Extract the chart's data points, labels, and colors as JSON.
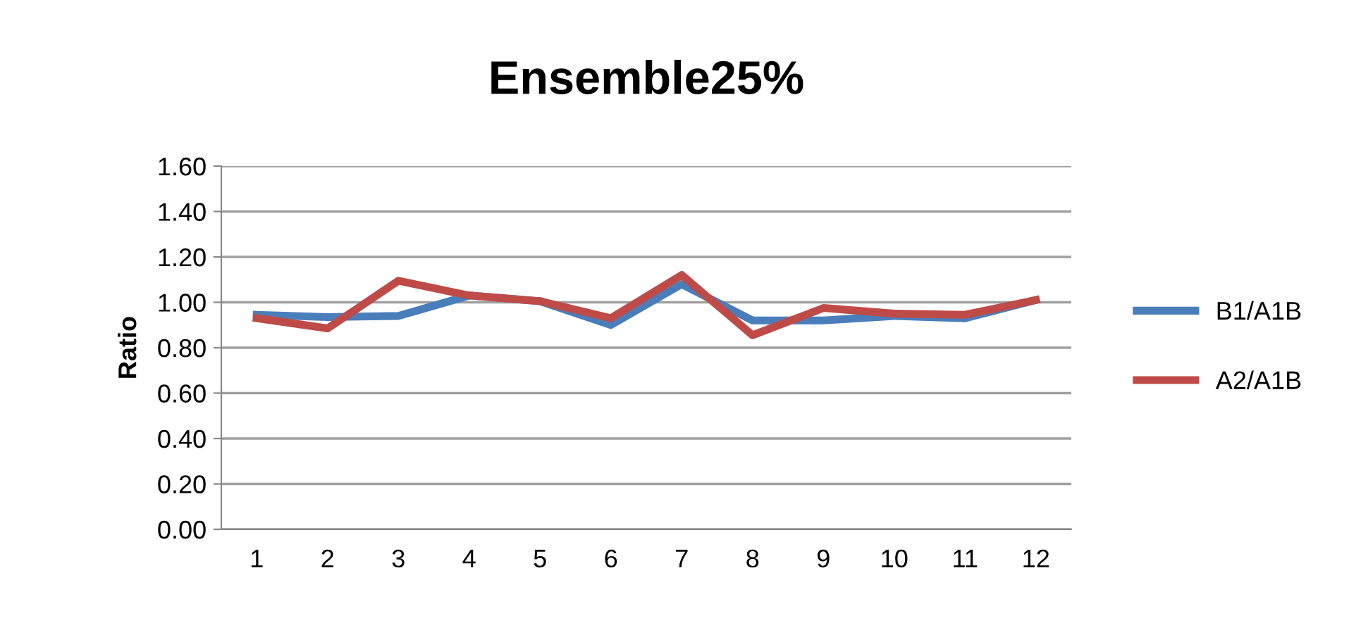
{
  "chart_data": {
    "type": "line",
    "title": "Ensemble25%",
    "ylabel": "Ratio",
    "categories": [
      "1",
      "2",
      "3",
      "4",
      "5",
      "6",
      "7",
      "8",
      "9",
      "10",
      "11",
      "12"
    ],
    "series": [
      {
        "name": "B1/A1B",
        "color": "#4a7ebb",
        "values": [
          0.945,
          0.935,
          0.94,
          1.03,
          1.005,
          0.9,
          1.08,
          0.92,
          0.92,
          0.94,
          0.93,
          1.01
        ]
      },
      {
        "name": "A2/A1B",
        "color": "#be4b48",
        "values": [
          0.93,
          0.885,
          1.095,
          1.03,
          1.005,
          0.93,
          1.12,
          0.855,
          0.975,
          0.95,
          0.945,
          1.01
        ]
      }
    ],
    "ylim": [
      0,
      1.6
    ],
    "yticks": [
      {
        "value": 0,
        "label": "0.00"
      },
      {
        "value": 0.2,
        "label": "0.20"
      },
      {
        "value": 0.4,
        "label": "0.40"
      },
      {
        "value": 0.6,
        "label": "0.60"
      },
      {
        "value": 0.8,
        "label": "0.80"
      },
      {
        "value": 1.0,
        "label": "1.00"
      },
      {
        "value": 1.2,
        "label": "1.20"
      },
      {
        "value": 1.4,
        "label": "1.40"
      },
      {
        "value": 1.6,
        "label": "1.60"
      }
    ],
    "grid": "y",
    "legend": "right",
    "marker": "none",
    "line_style": "solid"
  }
}
